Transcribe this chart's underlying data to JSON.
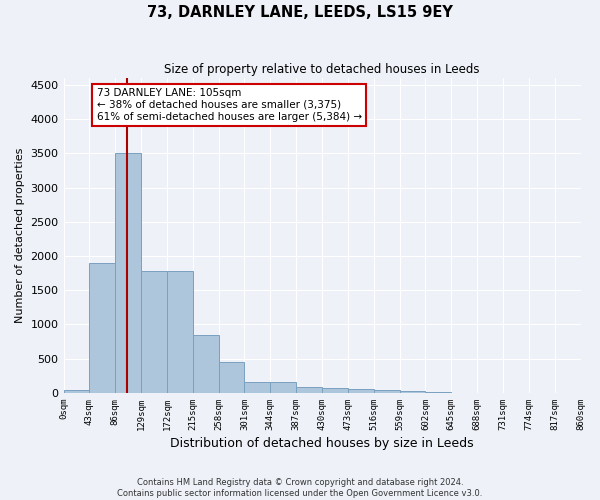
{
  "title": "73, DARNLEY LANE, LEEDS, LS15 9EY",
  "subtitle": "Size of property relative to detached houses in Leeds",
  "xlabel": "Distribution of detached houses by size in Leeds",
  "ylabel": "Number of detached properties",
  "property_label": "73 DARNLEY LANE: 105sqm",
  "annotation_line1": "← 38% of detached houses are smaller (3,375)",
  "annotation_line2": "61% of semi-detached houses are larger (5,384) →",
  "bin_width": 43,
  "bin_starts": [
    0,
    43,
    86,
    129,
    172,
    215,
    258,
    301,
    344,
    387,
    430,
    473,
    516,
    559,
    602,
    645,
    688,
    731,
    774,
    817
  ],
  "bin_labels": [
    "0sqm",
    "43sqm",
    "86sqm",
    "129sqm",
    "172sqm",
    "215sqm",
    "258sqm",
    "301sqm",
    "344sqm",
    "387sqm",
    "430sqm",
    "473sqm",
    "516sqm",
    "559sqm",
    "602sqm",
    "645sqm",
    "688sqm",
    "731sqm",
    "774sqm",
    "817sqm",
    "860sqm"
  ],
  "bar_heights": [
    45,
    1900,
    3500,
    1780,
    1780,
    850,
    450,
    160,
    160,
    90,
    70,
    55,
    45,
    35,
    10,
    5,
    4,
    3,
    2,
    2
  ],
  "bar_color": "#aec6dc",
  "bar_edge_color": "#7aa0c0",
  "vline_color": "#aa0000",
  "vline_x": 105,
  "annotation_box_edgecolor": "#cc0000",
  "annotation_text_color": "#000000",
  "annotation_bg_color": "#ffffff",
  "ylim": [
    0,
    4600
  ],
  "xlim": [
    0,
    860
  ],
  "background_color": "#eef2f8",
  "plot_bg_color": "#eef2f8",
  "grid_color": "#ffffff",
  "yticks": [
    0,
    500,
    1000,
    1500,
    2000,
    2500,
    3000,
    3500,
    4000,
    4500
  ],
  "footer_line1": "Contains HM Land Registry data © Crown copyright and database right 2024.",
  "footer_line2": "Contains public sector information licensed under the Open Government Licence v3.0."
}
